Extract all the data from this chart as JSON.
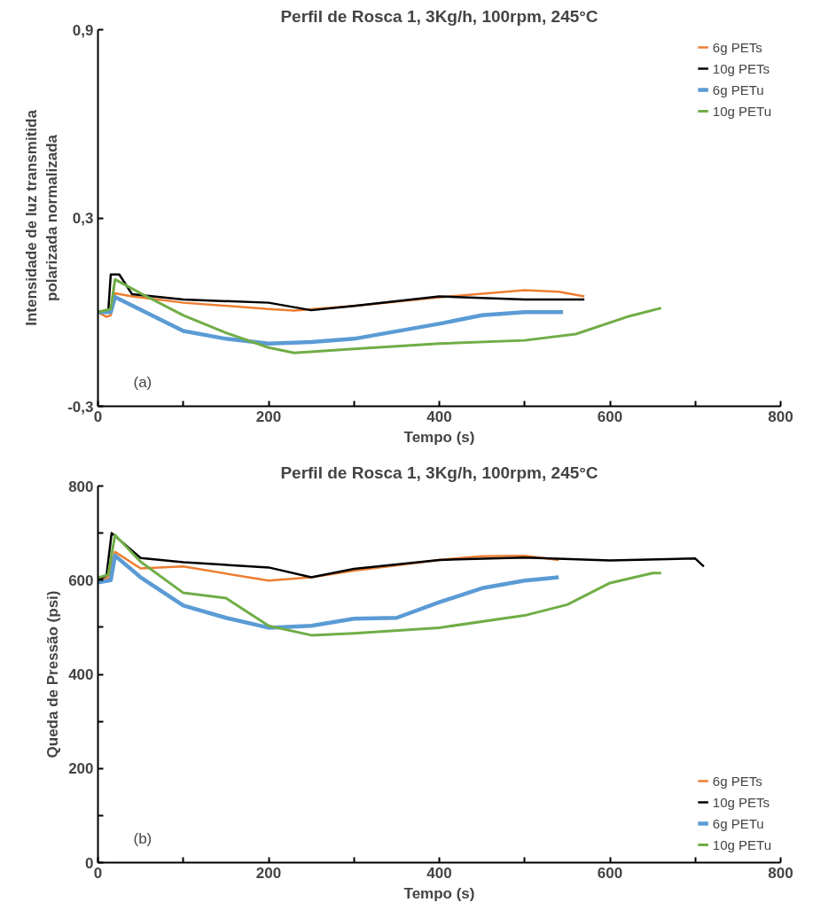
{
  "chart_data": [
    {
      "type": "line",
      "title": "Perfil de Rosca 1, 3Kg/h, 100rpm, 245°C",
      "xlabel": "Tempo (s)",
      "ylabel": "Intensidade de luz transmitida\npolarizada normalizada",
      "xlim": [
        0,
        800
      ],
      "xticks": [
        0,
        {
          "value": 100,
          "label": null
        },
        200,
        {
          "value": 300,
          "label": null
        },
        400,
        {
          "value": 500,
          "label": null
        },
        600,
        {
          "value": 700,
          "label": null
        },
        800
      ],
      "ylim": [
        -0.3,
        0.9
      ],
      "yticks": [
        {
          "value": -0.3,
          "label": "-0,3"
        },
        {
          "value": 0.3,
          "label": "0,3"
        },
        {
          "value": 0.9,
          "label": "0,9"
        }
      ],
      "grid": false,
      "legend": "top right",
      "annotations": [
        "(a)"
      ],
      "series": [
        {
          "name": "6g PETs",
          "color": "#ed7d31",
          "x": [
            0,
            10,
            15,
            20,
            40,
            100,
            200,
            230,
            300,
            400,
            500,
            540,
            570
          ],
          "values": [
            0.0,
            -0.015,
            -0.01,
            0.06,
            0.05,
            0.03,
            0.01,
            0.005,
            0.02,
            0.047,
            0.07,
            0.065,
            0.05
          ]
        },
        {
          "name": "10g PETs",
          "color": "#000000",
          "x": [
            0,
            12,
            15,
            25,
            40,
            100,
            200,
            250,
            300,
            400,
            500,
            570
          ],
          "values": [
            0.0,
            0.0,
            0.12,
            0.12,
            0.057,
            0.04,
            0.03,
            0.006,
            0.02,
            0.05,
            0.04,
            0.04
          ]
        },
        {
          "name": "6g PETu",
          "color": "#5b9bd5",
          "x": [
            0,
            15,
            20,
            100,
            150,
            200,
            250,
            300,
            400,
            450,
            500,
            545
          ],
          "values": [
            0.0,
            0.0,
            0.048,
            -0.06,
            -0.085,
            -0.1,
            -0.095,
            -0.085,
            -0.037,
            -0.01,
            0.0,
            0.0
          ]
        },
        {
          "name": "10g PETu",
          "color": "#70ad47",
          "x": [
            0,
            15,
            20,
            50,
            100,
            150,
            200,
            230,
            300,
            400,
            500,
            560,
            620,
            660
          ],
          "values": [
            0.0,
            0.01,
            0.104,
            0.06,
            -0.01,
            -0.066,
            -0.113,
            -0.13,
            -0.117,
            -0.1,
            -0.09,
            -0.07,
            -0.015,
            0.013
          ]
        }
      ]
    },
    {
      "type": "line",
      "title": "Perfil de Rosca 1, 3Kg/h, 100rpm, 245°C",
      "xlabel": "Tempo (s)",
      "ylabel": "Queda de Pressão (psi)",
      "xlim": [
        0,
        800
      ],
      "xticks": [
        0,
        {
          "value": 100,
          "label": null
        },
        200,
        {
          "value": 300,
          "label": null
        },
        400,
        {
          "value": 500,
          "label": null
        },
        600,
        {
          "value": 700,
          "label": null
        },
        800
      ],
      "ylim": [
        0,
        800
      ],
      "yticks": [
        0,
        {
          "value": 100,
          "label": null
        },
        200,
        {
          "value": 300,
          "label": null
        },
        400,
        {
          "value": 500,
          "label": null
        },
        600,
        {
          "value": 700,
          "label": null
        },
        800
      ],
      "grid": false,
      "legend": "bottom right",
      "annotations": [
        "(b)"
      ],
      "series": [
        {
          "name": "6g PETs",
          "color": "#ed7d31",
          "x": [
            0,
            12,
            20,
            50,
            100,
            200,
            250,
            300,
            400,
            450,
            500,
            540
          ],
          "values": [
            600,
            605,
            660,
            625,
            629,
            599,
            606,
            620,
            643,
            651,
            652,
            643
          ]
        },
        {
          "name": "10g PETs",
          "color": "#000000",
          "x": [
            0,
            10,
            16,
            50,
            100,
            200,
            250,
            300,
            400,
            500,
            600,
            700,
            710
          ],
          "values": [
            600,
            610,
            700,
            647,
            638,
            627,
            606,
            624,
            643,
            648,
            642,
            646,
            629
          ]
        },
        {
          "name": "6g PETu",
          "color": "#5b9bd5",
          "x": [
            0,
            15,
            20,
            50,
            100,
            150,
            200,
            250,
            300,
            350,
            400,
            450,
            500,
            540
          ],
          "values": [
            595,
            600,
            652,
            606,
            546,
            520,
            499,
            503,
            518,
            520,
            553,
            583,
            599,
            606
          ]
        },
        {
          "name": "10g PETu",
          "color": "#70ad47",
          "x": [
            0,
            12,
            20,
            50,
            100,
            150,
            200,
            250,
            300,
            400,
            500,
            550,
            600,
            650,
            660
          ],
          "values": [
            605,
            612,
            696,
            639,
            573,
            562,
            503,
            483,
            487,
            499,
            525,
            548,
            594,
            615,
            615
          ]
        }
      ]
    }
  ]
}
